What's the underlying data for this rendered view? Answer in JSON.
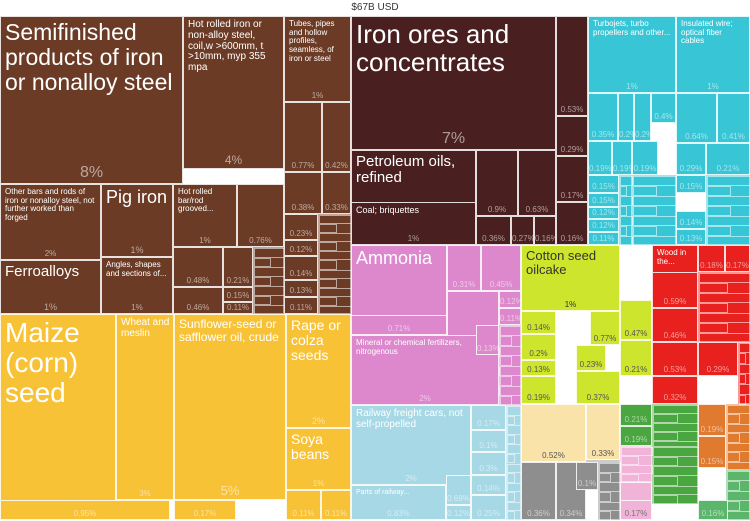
{
  "chart_data": {
    "type": "treemap",
    "total_label": "$67B USD",
    "groups": [
      {
        "name": "metals",
        "color": "#6b3b26"
      },
      {
        "name": "mineral",
        "color": "#4a1f20"
      },
      {
        "name": "chemicals",
        "color": "#dd88cc"
      },
      {
        "name": "vegetable",
        "color": "#f8c237"
      },
      {
        "name": "transport",
        "color": "#a6d8e5"
      },
      {
        "name": "machinery",
        "color": "#38c6d6"
      },
      {
        "name": "foodstuffs",
        "color": "#cde52c"
      },
      {
        "name": "wood",
        "color": "#e8201e"
      }
    ],
    "cells": [
      {
        "label": "Semifinished products of iron or nonalloy steel",
        "pct": "8%",
        "group": "metals"
      },
      {
        "label": "Hot rolled iron or non-alloy steel, coil,w >600mm, t >10mm, myp 355 mpa",
        "pct": "4%",
        "group": "metals"
      },
      {
        "label": "Tubes, pipes and hollow profiles, seamless, of iron or steel",
        "pct": "1%",
        "group": "metals"
      },
      {
        "label": "Other bars and rods of iron or nonalloy steel, not further worked than forged",
        "pct": "2%",
        "group": "metals"
      },
      {
        "label": "Pig iron",
        "pct": "1%",
        "group": "metals"
      },
      {
        "label": "Hot rolled bar/rod grooved...",
        "pct": "1%",
        "group": "metals"
      },
      {
        "label": "",
        "pct": "0.76%",
        "group": "metals"
      },
      {
        "label": "Ferroalloys",
        "pct": "1%",
        "group": "metals"
      },
      {
        "label": "Angles, shapes and sections of...",
        "pct": "1%",
        "group": "metals"
      },
      {
        "label": "",
        "pct": "0.48%",
        "group": "metals"
      },
      {
        "label": "",
        "pct": "0.21%",
        "group": "metals"
      },
      {
        "label": "",
        "pct": "0.46%",
        "group": "metals"
      },
      {
        "label": "",
        "pct": "0.15%",
        "group": "metals"
      },
      {
        "label": "",
        "pct": "0.11%",
        "group": "metals"
      },
      {
        "label": "",
        "pct": "0.77%",
        "group": "metals"
      },
      {
        "label": "",
        "pct": "0.42%",
        "group": "metals"
      },
      {
        "label": "",
        "pct": "0.38%",
        "group": "metals"
      },
      {
        "label": "",
        "pct": "0.33%",
        "group": "metals"
      },
      {
        "label": "",
        "pct": "0.23%",
        "group": "metals"
      },
      {
        "label": "",
        "pct": "0.12%",
        "group": "metals"
      },
      {
        "label": "",
        "pct": "0.14%",
        "group": "metals"
      },
      {
        "label": "",
        "pct": "0.13%",
        "group": "metals"
      },
      {
        "label": "",
        "pct": "0.11%",
        "group": "metals"
      },
      {
        "label": "Iron ores and concentrates",
        "pct": "7%",
        "group": "mineral"
      },
      {
        "label": "",
        "pct": "0.53%",
        "group": "mineral"
      },
      {
        "label": "",
        "pct": "0.29%",
        "group": "mineral"
      },
      {
        "label": "Petroleum oils, refined",
        "pct": "",
        "group": "mineral"
      },
      {
        "label": "",
        "pct": "0.9%",
        "group": "mineral"
      },
      {
        "label": "",
        "pct": "0.63%",
        "group": "mineral"
      },
      {
        "label": "",
        "pct": "0.17%",
        "group": "mineral"
      },
      {
        "label": "Coal; briquettes",
        "pct": "1%",
        "group": "mineral"
      },
      {
        "label": "",
        "pct": "0.36%",
        "group": "mineral"
      },
      {
        "label": "",
        "pct": "0.27%",
        "group": "mineral"
      },
      {
        "label": "",
        "pct": "0.16%",
        "group": "mineral"
      },
      {
        "label": "",
        "pct": "0.16%",
        "group": "mineral"
      },
      {
        "label": "Turbojets, turbo propellers and other...",
        "pct": "1%",
        "group": "machinery"
      },
      {
        "label": "",
        "pct": "0.4%",
        "group": "machinery"
      },
      {
        "label": "Insulated wire; optical fiber cables",
        "pct": "1%",
        "group": "machinery"
      },
      {
        "label": "",
        "pct": "0.35%",
        "group": "machinery"
      },
      {
        "label": "",
        "pct": "0.2%",
        "group": "machinery"
      },
      {
        "label": "",
        "pct": "0.2%",
        "group": "machinery"
      },
      {
        "label": "",
        "pct": "0.64%",
        "group": "machinery"
      },
      {
        "label": "",
        "pct": "0.41%",
        "group": "machinery"
      },
      {
        "label": "",
        "pct": "0.19%",
        "group": "machinery"
      },
      {
        "label": "",
        "pct": "0.19%",
        "group": "machinery"
      },
      {
        "label": "",
        "pct": "0.19%",
        "group": "machinery"
      },
      {
        "label": "",
        "pct": "0.29%",
        "group": "machinery"
      },
      {
        "label": "",
        "pct": "0.21%",
        "group": "machinery"
      },
      {
        "label": "",
        "pct": "0.15%",
        "group": "machinery"
      },
      {
        "label": "",
        "pct": "0.15%",
        "group": "machinery"
      },
      {
        "label": "",
        "pct": "0.15%",
        "group": "machinery"
      },
      {
        "label": "",
        "pct": "0.12%",
        "group": "machinery"
      },
      {
        "label": "",
        "pct": "0.12%",
        "group": "machinery"
      },
      {
        "label": "",
        "pct": "0.14%",
        "group": "machinery"
      },
      {
        "label": "",
        "pct": "0.11%",
        "group": "machinery"
      },
      {
        "label": "",
        "pct": "0.13%",
        "group": "machinery"
      },
      {
        "label": "Ammonia",
        "pct": "2%",
        "group": "chemicals"
      },
      {
        "label": "",
        "pct": "0.31%",
        "group": "chemicals"
      },
      {
        "label": "",
        "pct": "0.45%",
        "group": "chemicals"
      },
      {
        "label": "",
        "pct": "0.12%",
        "group": "chemicals"
      },
      {
        "label": "",
        "pct": "0.11%",
        "group": "chemicals"
      },
      {
        "label": "",
        "pct": "0.71%",
        "group": "chemicals"
      },
      {
        "label": "",
        "pct": "0.33%",
        "group": "chemicals"
      },
      {
        "label": "Mineral or chemical fertilizers, nitrogenous",
        "pct": "2%",
        "group": "chemicals"
      },
      {
        "label": "",
        "pct": "0.13%",
        "group": "chemicals"
      },
      {
        "label": "Cotton seed oilcake",
        "pct": "1%",
        "group": "foodstuffs"
      },
      {
        "label": "",
        "pct": "0.77%",
        "group": "foodstuffs"
      },
      {
        "label": "",
        "pct": "0.47%",
        "group": "foodstuffs"
      },
      {
        "label": "",
        "pct": "0.14%",
        "group": "foodstuffs"
      },
      {
        "label": "",
        "pct": "0.2%",
        "group": "foodstuffs"
      },
      {
        "label": "",
        "pct": "0.13%",
        "group": "foodstuffs"
      },
      {
        "label": "",
        "pct": "0.23%",
        "group": "foodstuffs"
      },
      {
        "label": "",
        "pct": "0.21%",
        "group": "foodstuffs"
      },
      {
        "label": "",
        "pct": "0.19%",
        "group": "foodstuffs"
      },
      {
        "label": "",
        "pct": "0.37%",
        "group": "foodstuffs"
      },
      {
        "label": "Wood in the...",
        "pct": "",
        "group": "wood"
      },
      {
        "label": "",
        "pct": "0.18%",
        "group": "wood"
      },
      {
        "label": "",
        "pct": "0.17%",
        "group": "wood"
      },
      {
        "label": "",
        "pct": "0.59%",
        "group": "wood"
      },
      {
        "label": "",
        "pct": "0.46%",
        "group": "wood"
      },
      {
        "label": "",
        "pct": "0.53%",
        "group": "wood"
      },
      {
        "label": "",
        "pct": "0.29%",
        "group": "wood"
      },
      {
        "label": "",
        "pct": "0.32%",
        "group": "wood"
      },
      {
        "label": "Maize (corn) seed",
        "pct": "6%",
        "group": "vegetable"
      },
      {
        "label": "",
        "pct": "0.95%",
        "group": "vegetable"
      },
      {
        "label": "Wheat and meslin",
        "pct": "3%",
        "group": "vegetable"
      },
      {
        "label": "Sunflower-seed or safflower oil, crude",
        "pct": "5%",
        "group": "vegetable"
      },
      {
        "label": "",
        "pct": "0.17%",
        "group": "vegetable"
      },
      {
        "label": "Rape or colza seeds",
        "pct": "2%",
        "group": "vegetable"
      },
      {
        "label": "Soya beans",
        "pct": "1%",
        "group": "vegetable"
      },
      {
        "label": "",
        "pct": "0.11%",
        "group": "vegetable"
      },
      {
        "label": "",
        "pct": "0.11%",
        "group": "vegetable"
      },
      {
        "label": "Railway freight cars, not self-propelled",
        "pct": "2%",
        "group": "transport"
      },
      {
        "label": "",
        "pct": "0.17%",
        "group": "transport"
      },
      {
        "label": "",
        "pct": "0.1%",
        "group": "transport"
      },
      {
        "label": "",
        "pct": "0.3%",
        "group": "transport"
      },
      {
        "label": "",
        "pct": "0.14%",
        "group": "transport"
      },
      {
        "label": "Parts of railway...",
        "pct": "0.83%",
        "group": "transport"
      },
      {
        "label": "",
        "pct": "0.69%",
        "group": "transport"
      },
      {
        "label": "",
        "pct": "0.12%",
        "group": "transport"
      },
      {
        "label": "",
        "pct": "0.25%",
        "group": "transport"
      },
      {
        "label": "",
        "pct": "0.52%",
        "group": "textiles"
      },
      {
        "label": "",
        "pct": "0.33%",
        "group": "textiles"
      },
      {
        "label": "",
        "pct": "0.36%",
        "group": "stone"
      },
      {
        "label": "",
        "pct": "0.34%",
        "group": "stone"
      },
      {
        "label": "",
        "pct": "0.1%",
        "group": "stone"
      },
      {
        "label": "",
        "pct": "0.22%",
        "group": "footwear"
      },
      {
        "label": "",
        "pct": "0.17%",
        "group": "footwear"
      },
      {
        "label": "",
        "pct": "0.21%",
        "group": "animal"
      },
      {
        "label": "",
        "pct": "0.19%",
        "group": "animal"
      },
      {
        "label": "",
        "pct": "0.19%",
        "group": "hides"
      },
      {
        "label": "",
        "pct": "0.15%",
        "group": "hides"
      },
      {
        "label": "",
        "pct": "0.16%",
        "group": "plastics"
      }
    ]
  }
}
